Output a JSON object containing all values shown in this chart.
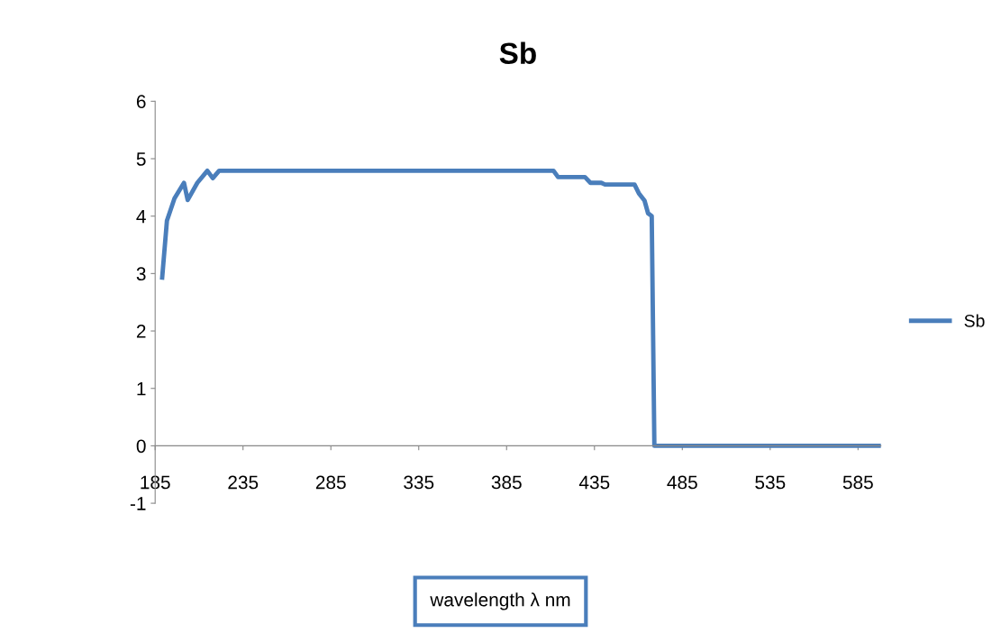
{
  "chart_data": {
    "type": "line",
    "title": "Sb",
    "xlabel": "wavelength λ nm",
    "x": [
      189,
      191.7,
      196,
      201.4,
      203.5,
      209,
      214.7,
      217.8,
      221.4,
      411.7,
      414.3,
      429.6,
      432.7,
      438.9,
      441,
      457.8,
      460.4,
      463.5,
      465.5,
      467.6,
      469.1,
      598
    ],
    "series": [
      {
        "name": "Sb",
        "color": "#4a7ebb",
        "values": [
          2.93,
          3.92,
          4.31,
          4.58,
          4.28,
          4.58,
          4.79,
          4.66,
          4.79,
          4.79,
          4.68,
          4.68,
          4.58,
          4.58,
          4.55,
          4.55,
          4.39,
          4.27,
          4.05,
          4.0,
          0,
          0
        ]
      }
    ],
    "xlim": [
      185,
      598
    ],
    "xticks": [
      185,
      235,
      285,
      335,
      385,
      435,
      485,
      535,
      585
    ],
    "ylim": [
      -1,
      6
    ],
    "yticks": [
      -1,
      0,
      1,
      2,
      3,
      4,
      5,
      6
    ],
    "grid": false,
    "legend": "right",
    "marker": "none",
    "line_style": "solid"
  }
}
